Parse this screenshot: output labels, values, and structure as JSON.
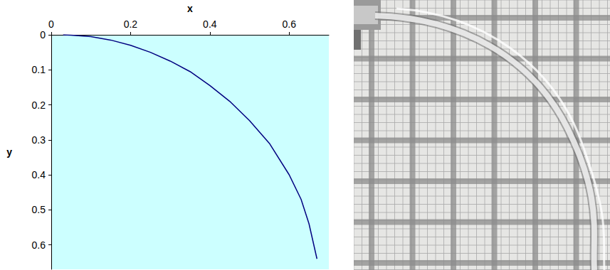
{
  "chart_data": {
    "type": "line",
    "x_label": "x",
    "y_label": "y",
    "x": [
      0.03,
      0.05,
      0.1,
      0.15,
      0.2,
      0.25,
      0.3,
      0.35,
      0.4,
      0.45,
      0.5,
      0.55,
      0.6,
      0.63,
      0.65,
      0.67
    ],
    "values": [
      0.0,
      0.001,
      0.005,
      0.015,
      0.03,
      0.05,
      0.075,
      0.105,
      0.145,
      0.19,
      0.245,
      0.31,
      0.4,
      0.47,
      0.54,
      0.64
    ],
    "color": "#000080",
    "xlim": [
      0,
      0.7
    ],
    "ylim": [
      0,
      0.67
    ],
    "xticks": [
      0,
      0.2,
      0.4,
      0.6
    ],
    "yticks": [
      0,
      0.1,
      0.2,
      0.3,
      0.4,
      0.5,
      0.6
    ],
    "grid": false
  }
}
